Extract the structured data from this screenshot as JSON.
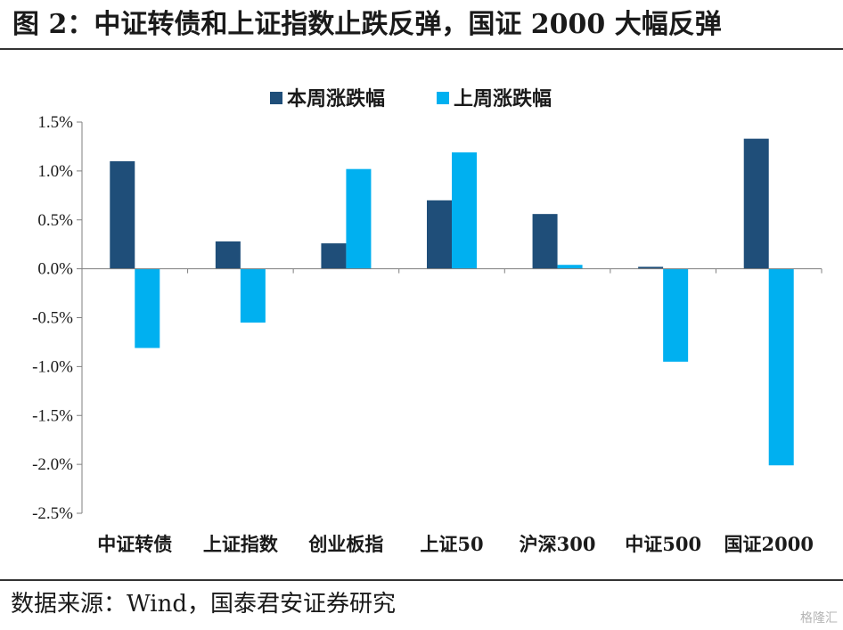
{
  "header": {
    "title": "图 2：中证转债和上证指数止跌反弹，国证 2000 大幅反弹"
  },
  "footer": {
    "source": "数据来源：Wind，国泰君安证券研究",
    "watermark": "格隆汇"
  },
  "colors": {
    "this_week": "#1f4e79",
    "last_week": "#00b0f0"
  },
  "chart_data": {
    "type": "bar",
    "categories": [
      "中证转债",
      "上证指数",
      "创业板指",
      "上证50",
      "沪深300",
      "中证500",
      "国证2000"
    ],
    "series": [
      {
        "name": "本周涨跌幅",
        "values": [
          1.1,
          0.28,
          0.26,
          0.7,
          0.56,
          0.02,
          1.33
        ]
      },
      {
        "name": "上周涨跌幅",
        "values": [
          -0.81,
          -0.55,
          1.02,
          1.19,
          0.04,
          -0.95,
          -2.01
        ]
      }
    ],
    "yticks": [
      "1.5%",
      "1.0%",
      "0.5%",
      "0.0%",
      "-0.5%",
      "-1.0%",
      "-1.5%",
      "-2.0%",
      "-2.5%"
    ],
    "ylim": [
      -2.5,
      1.5
    ],
    "legend": "top-center",
    "grid": false
  }
}
